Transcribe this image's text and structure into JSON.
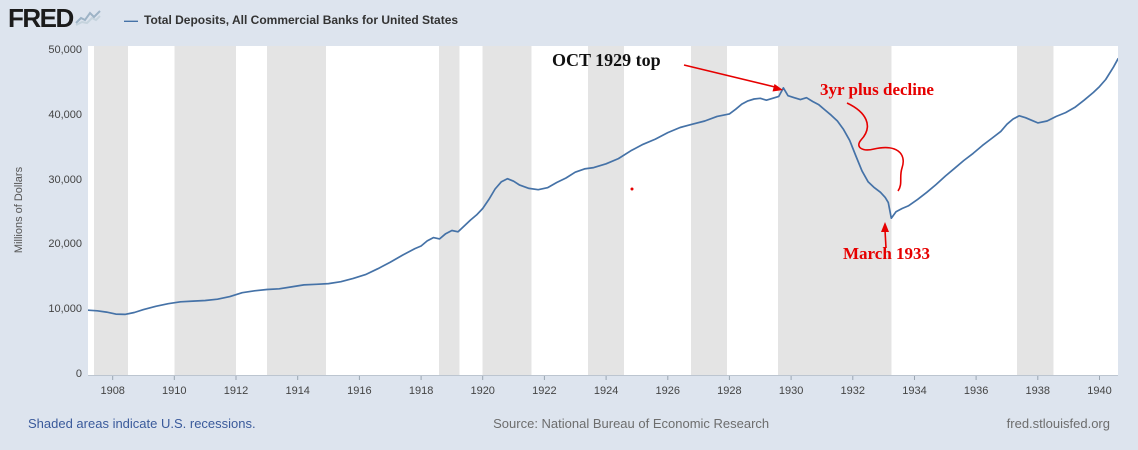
{
  "header": {
    "logo_text": "FRED"
  },
  "chart_data": {
    "type": "line",
    "title": "Total Deposits, All Commercial Banks for United States",
    "ylabel": "Millions of Dollars",
    "xlabel": "",
    "x_range": [
      1907.2,
      1940.6
    ],
    "y_range": [
      0,
      50000
    ],
    "y_ticks": [
      0,
      10000,
      20000,
      30000,
      40000,
      50000
    ],
    "y_tick_labels": [
      "0",
      "10,000",
      "20,000",
      "30,000",
      "40,000",
      "50,000"
    ],
    "x_ticks": [
      1908,
      1910,
      1912,
      1914,
      1916,
      1918,
      1920,
      1922,
      1924,
      1926,
      1928,
      1930,
      1932,
      1934,
      1936,
      1938,
      1940
    ],
    "grid": false,
    "legend_position": "top-left",
    "recession_color": "#e4e4e4",
    "annotation_color": "#e60000",
    "recessions": [
      [
        1907.4,
        1908.5
      ],
      [
        1910.0,
        1912.0
      ],
      [
        1913.0,
        1914.92
      ],
      [
        1918.58,
        1919.25
      ],
      [
        1920.0,
        1921.58
      ],
      [
        1923.42,
        1924.58
      ],
      [
        1926.75,
        1927.92
      ],
      [
        1929.58,
        1933.25
      ],
      [
        1937.33,
        1938.5
      ]
    ],
    "series": [
      {
        "name": "Total Deposits, All Commercial Banks for United States",
        "color": "#4572a7",
        "units": "Millions of Dollars",
        "points": [
          [
            1907.2,
            10000
          ],
          [
            1907.5,
            9900
          ],
          [
            1907.8,
            9700
          ],
          [
            1908.1,
            9400
          ],
          [
            1908.4,
            9350
          ],
          [
            1908.7,
            9650
          ],
          [
            1909.0,
            10100
          ],
          [
            1909.4,
            10600
          ],
          [
            1909.8,
            11000
          ],
          [
            1910.2,
            11300
          ],
          [
            1910.6,
            11400
          ],
          [
            1911.0,
            11500
          ],
          [
            1911.4,
            11700
          ],
          [
            1911.8,
            12100
          ],
          [
            1912.2,
            12700
          ],
          [
            1912.6,
            13000
          ],
          [
            1913.0,
            13200
          ],
          [
            1913.4,
            13300
          ],
          [
            1913.8,
            13600
          ],
          [
            1914.2,
            13900
          ],
          [
            1914.6,
            14000
          ],
          [
            1915.0,
            14100
          ],
          [
            1915.4,
            14400
          ],
          [
            1915.8,
            14900
          ],
          [
            1916.2,
            15500
          ],
          [
            1916.6,
            16400
          ],
          [
            1917.0,
            17400
          ],
          [
            1917.4,
            18500
          ],
          [
            1917.8,
            19500
          ],
          [
            1918.0,
            19900
          ],
          [
            1918.2,
            20700
          ],
          [
            1918.4,
            21200
          ],
          [
            1918.6,
            21000
          ],
          [
            1918.8,
            21800
          ],
          [
            1919.0,
            22300
          ],
          [
            1919.2,
            22100
          ],
          [
            1919.4,
            23000
          ],
          [
            1919.6,
            23900
          ],
          [
            1919.8,
            24700
          ],
          [
            1920.0,
            25700
          ],
          [
            1920.2,
            27100
          ],
          [
            1920.4,
            28700
          ],
          [
            1920.6,
            29800
          ],
          [
            1920.8,
            30300
          ],
          [
            1921.0,
            29900
          ],
          [
            1921.2,
            29300
          ],
          [
            1921.5,
            28800
          ],
          [
            1921.8,
            28600
          ],
          [
            1922.1,
            28900
          ],
          [
            1922.4,
            29700
          ],
          [
            1922.7,
            30400
          ],
          [
            1923.0,
            31300
          ],
          [
            1923.3,
            31800
          ],
          [
            1923.6,
            32000
          ],
          [
            1924.0,
            32600
          ],
          [
            1924.4,
            33400
          ],
          [
            1924.8,
            34600
          ],
          [
            1925.2,
            35600
          ],
          [
            1925.6,
            36400
          ],
          [
            1926.0,
            37400
          ],
          [
            1926.4,
            38200
          ],
          [
            1926.8,
            38700
          ],
          [
            1927.2,
            39200
          ],
          [
            1927.6,
            39900
          ],
          [
            1928.0,
            40300
          ],
          [
            1928.2,
            41000
          ],
          [
            1928.4,
            41800
          ],
          [
            1928.6,
            42300
          ],
          [
            1928.8,
            42600
          ],
          [
            1929.0,
            42700
          ],
          [
            1929.2,
            42400
          ],
          [
            1929.4,
            42700
          ],
          [
            1929.6,
            43000
          ],
          [
            1929.75,
            44300
          ],
          [
            1929.9,
            43100
          ],
          [
            1930.1,
            42800
          ],
          [
            1930.3,
            42500
          ],
          [
            1930.5,
            42800
          ],
          [
            1930.7,
            42200
          ],
          [
            1930.9,
            41700
          ],
          [
            1931.1,
            40900
          ],
          [
            1931.3,
            40100
          ],
          [
            1931.5,
            39200
          ],
          [
            1931.7,
            37900
          ],
          [
            1931.9,
            36200
          ],
          [
            1932.1,
            33800
          ],
          [
            1932.3,
            31500
          ],
          [
            1932.5,
            29800
          ],
          [
            1932.7,
            28900
          ],
          [
            1932.9,
            28200
          ],
          [
            1933.05,
            27400
          ],
          [
            1933.15,
            26600
          ],
          [
            1933.25,
            24200
          ],
          [
            1933.4,
            25200
          ],
          [
            1933.6,
            25700
          ],
          [
            1933.8,
            26100
          ],
          [
            1934.1,
            27100
          ],
          [
            1934.4,
            28200
          ],
          [
            1934.7,
            29400
          ],
          [
            1935.0,
            30700
          ],
          [
            1935.3,
            31900
          ],
          [
            1935.6,
            33100
          ],
          [
            1935.9,
            34200
          ],
          [
            1936.2,
            35400
          ],
          [
            1936.5,
            36500
          ],
          [
            1936.8,
            37600
          ],
          [
            1937.0,
            38700
          ],
          [
            1937.2,
            39500
          ],
          [
            1937.4,
            40000
          ],
          [
            1937.6,
            39700
          ],
          [
            1937.8,
            39300
          ],
          [
            1938.0,
            38900
          ],
          [
            1938.3,
            39200
          ],
          [
            1938.6,
            39900
          ],
          [
            1938.9,
            40500
          ],
          [
            1939.2,
            41300
          ],
          [
            1939.5,
            42400
          ],
          [
            1939.8,
            43600
          ],
          [
            1940.0,
            44500
          ],
          [
            1940.2,
            45600
          ],
          [
            1940.45,
            47500
          ],
          [
            1940.6,
            48800
          ]
        ]
      }
    ],
    "annotations": [
      {
        "text": "OCT 1929 top",
        "color": "#000000"
      },
      {
        "text": "3yr plus decline",
        "color": "#e60000"
      },
      {
        "text": "March 1933",
        "color": "#e60000"
      }
    ]
  },
  "footer": {
    "left": "Shaded areas indicate U.S. recessions.",
    "center": "Source: National Bureau of Economic Research",
    "right": "fred.stlouisfed.org"
  }
}
